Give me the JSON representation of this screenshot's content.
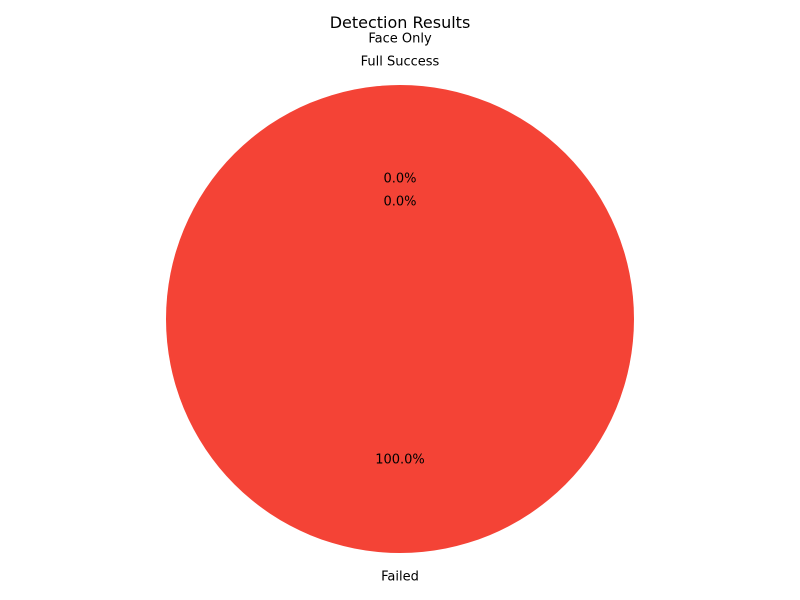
{
  "chart_data": {
    "type": "pie",
    "title": "Detection Results",
    "slices": [
      {
        "label": "Full Success",
        "value": 0,
        "pct_label": "0.0%",
        "color": "#4caf50"
      },
      {
        "label": "Face Only",
        "value": 0,
        "pct_label": "0.0%",
        "color": "#ff9800"
      },
      {
        "label": "Failed",
        "value": 100,
        "pct_label": "100.0%",
        "color": "#f44336"
      }
    ],
    "start_angle_deg": 90,
    "direction": "counterclockwise",
    "legend": "none"
  }
}
